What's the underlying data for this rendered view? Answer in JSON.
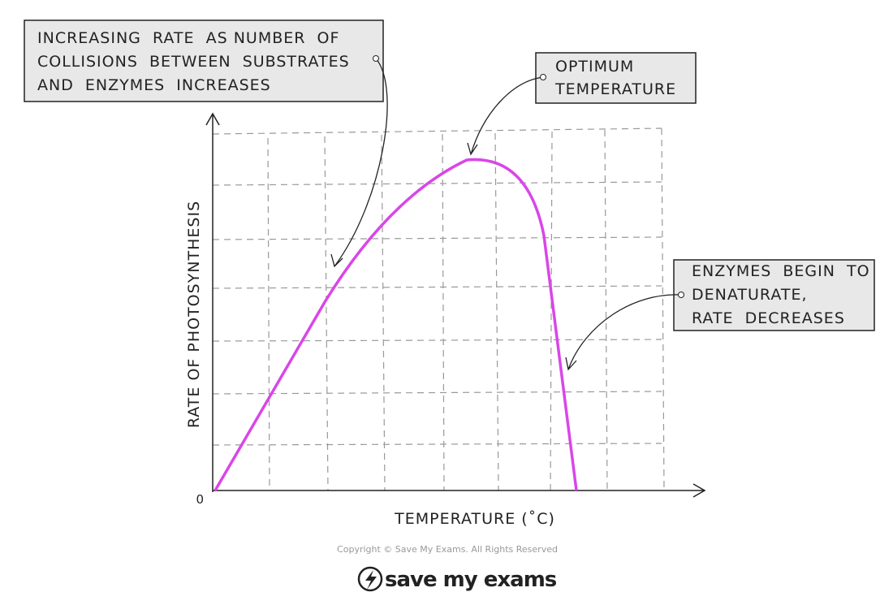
{
  "callouts": [
    {
      "lines": [
        "INCREASING  RATE  AS NUMBER  OF",
        "COLLISIONS  BETWEEN  SUBSTRATES",
        "AND  ENZYMES  INCREASES"
      ]
    },
    {
      "lines": [
        "OPTIMUM",
        "TEMPERATURE"
      ]
    },
    {
      "lines": [
        "ENZYMES  BEGIN  TO",
        "DENATURATE,",
        "RATE  DECREASES"
      ]
    }
  ],
  "axes": {
    "y_label": "RATE OF PHOTOSYNTHESIS",
    "x_label": "TEMPERATURE (˚C)",
    "origin_label": "0"
  },
  "footer": {
    "copyright": "Copyright © Save My Exams. All Rights Reserved",
    "logo": "save my exams"
  }
}
